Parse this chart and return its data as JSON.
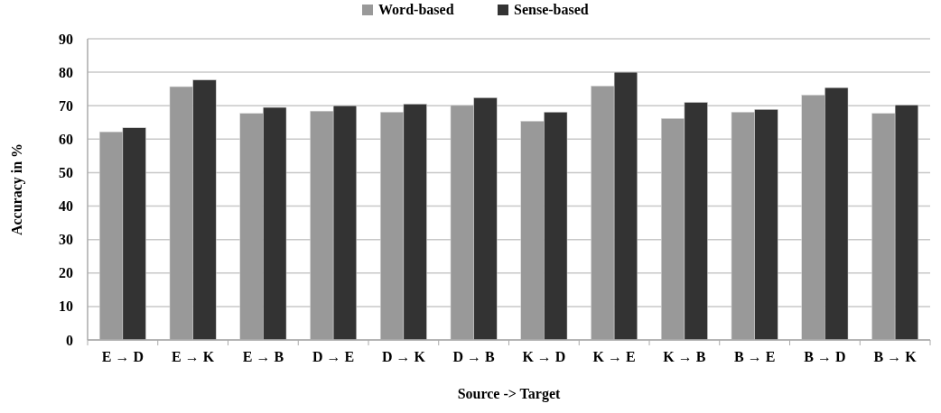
{
  "chart_data": {
    "type": "bar",
    "xlabel": "Source -> Target",
    "ylabel": "Accuracy in %",
    "categories": [
      "E → D",
      "E → K",
      "E → B",
      "D → E",
      "D → K",
      "D → B",
      "K → D",
      "K → E",
      "K → B",
      "B → E",
      "B → D",
      "B → K"
    ],
    "series": [
      {
        "name": "Word-based",
        "color": "#999999",
        "values": [
          62.2,
          75.7,
          67.7,
          68.4,
          68.1,
          70.1,
          65.4,
          75.9,
          66.2,
          68.1,
          73.2,
          67.7
        ]
      },
      {
        "name": "Sense-based",
        "color": "#333333",
        "values": [
          63.4,
          77.7,
          69.5,
          70.0,
          70.5,
          72.4,
          68.1,
          80.0,
          71.0,
          68.9,
          75.4,
          70.2
        ]
      }
    ],
    "ylim": [
      0,
      90
    ],
    "yticks": [
      0,
      10,
      20,
      30,
      40,
      50,
      60,
      70,
      80,
      90
    ],
    "grid": "y",
    "legend": "top"
  }
}
